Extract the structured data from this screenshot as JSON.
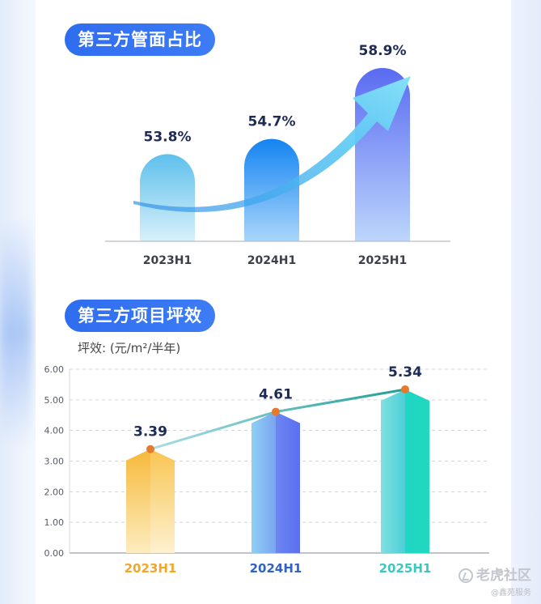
{
  "sections": {
    "share_title": "第三方管面占比",
    "efficiency_title": "第三方项目坪效",
    "efficiency_unit": "坪效: (元/m²/半年)"
  },
  "chart_data": [
    {
      "type": "bar",
      "title": "第三方管面占比",
      "categories": [
        "2023H1",
        "2024H1",
        "2025H1"
      ],
      "values": [
        53.8,
        54.7,
        58.9
      ],
      "value_labels": [
        "53.8%",
        "54.7%",
        "58.9%"
      ],
      "unit": "%",
      "grid": false,
      "colors": [
        "#6cc6ee",
        "#1a8cf2",
        "#6f7ff5"
      ],
      "arrow_color": "#5fcdf2"
    },
    {
      "type": "bar",
      "title": "第三方项目坪效",
      "ylabel": "坪效: (元/m²/半年)",
      "categories": [
        "2023H1",
        "2024H1",
        "2025H1"
      ],
      "values": [
        3.39,
        4.61,
        5.34
      ],
      "value_labels": [
        "3.39",
        "4.61",
        "5.34"
      ],
      "ylim": [
        0,
        6
      ],
      "yticks": [
        "0.00",
        "1.00",
        "2.00",
        "3.00",
        "4.00",
        "5.00",
        "6.00"
      ],
      "grid": true,
      "trend_line": true,
      "category_colors": [
        "#f2a62a",
        "#2f63c6",
        "#3cc7c2"
      ],
      "bar_colors": [
        "#f8c24e",
        "#6a8cf5",
        "#28d3c4"
      ],
      "marker_color": "#e57a2c"
    }
  ],
  "watermark": {
    "brand": "老虎社区",
    "sub": "@鑫苑服务"
  }
}
